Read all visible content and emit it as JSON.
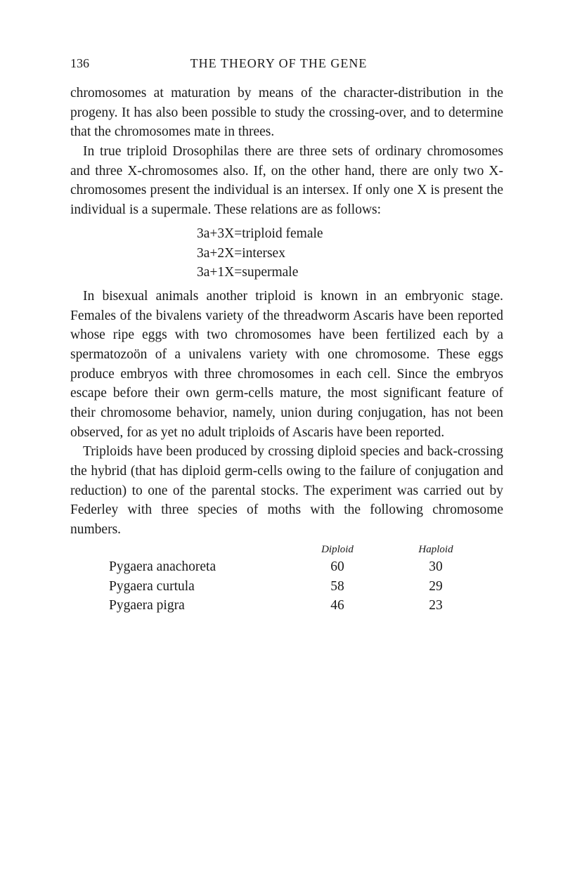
{
  "header": {
    "page_number": "136",
    "chapter_title": "THE THEORY OF THE GENE"
  },
  "paragraphs": {
    "p1": "chromosomes at maturation by means of the character-distribution in the progeny. It has also been possible to study the crossing-over, and to determine that the chromosomes mate in threes.",
    "p2": "In true triploid Drosophilas there are three sets of ordinary chromosomes and three X-chromosomes also. If, on the other hand, there are only two X-chromosomes present the individual is an intersex. If only one X is present the individual is a supermale. These relations are as follows:",
    "p3": "In bisexual animals another triploid is known in an embryonic stage. Females of the bivalens variety of the threadworm Ascaris have been reported whose ripe eggs with two chromosomes have been fertilized each by a spermatozoön of a univalens variety with one chromosome. These eggs produce embryos with three chromosomes in each cell. Since the embryos escape before their own germ-cells mature, the most significant feature of their chromosome behavior, namely, union during conjugation, has not been observed, for as yet no adult triploids of Ascaris have been reported.",
    "p4": "Triploids have been produced by crossing diploid species and back-crossing the hybrid (that has diploid germ-cells owing to the failure of conjugation and reduction) to one of the parental stocks. The experiment was carried out by Federley with three species of moths with the following chromosome numbers."
  },
  "formulas": {
    "f1": "3a+3X=triploid female",
    "f2": "3a+2X=intersex",
    "f3": "3a+1X=supermale"
  },
  "table": {
    "headers": {
      "diploid": "Diploid",
      "haploid": "Haploid"
    },
    "rows": [
      {
        "species": "Pygaera anachoreta",
        "diploid": "60",
        "haploid": "30"
      },
      {
        "species": "Pygaera curtula",
        "diploid": "58",
        "haploid": "29"
      },
      {
        "species": "Pygaera pigra",
        "diploid": "46",
        "haploid": "23"
      }
    ]
  }
}
